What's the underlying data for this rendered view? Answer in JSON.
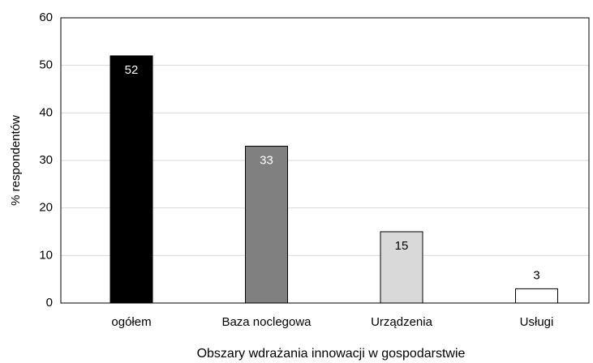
{
  "chart_data": {
    "type": "bar",
    "categories": [
      "ogółem",
      "Baza noclegowa",
      "Urządzenia",
      "Usługi"
    ],
    "values": [
      52,
      33,
      15,
      3
    ],
    "colors": [
      "#000000",
      "#808080",
      "#d9d9d9",
      "#ffffff"
    ],
    "xlabel": "Obszary wdrażania innowacji w gospodarstwie",
    "ylabel": "% respondentów",
    "ylim": [
      0,
      60
    ],
    "yticks": [
      0,
      10,
      20,
      30,
      40,
      50,
      60
    ],
    "grid": true
  }
}
